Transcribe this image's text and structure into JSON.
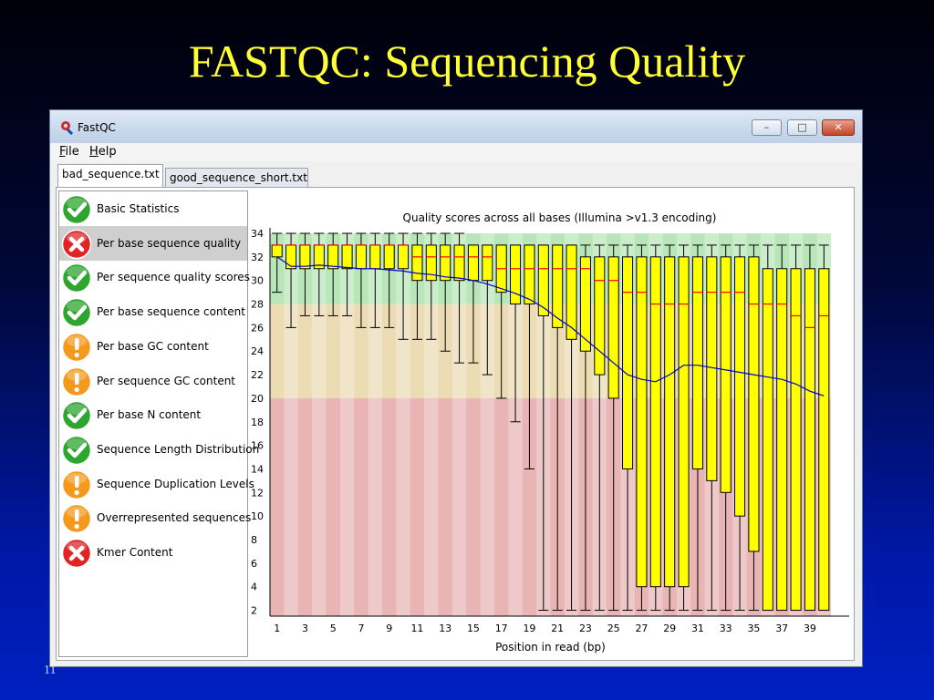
{
  "slide": {
    "title": "FASTQC: Sequencing Quality",
    "number": "11"
  },
  "window": {
    "title": "FastQC",
    "minimize_glyph": "–",
    "maximize_glyph": "□",
    "close_glyph": "✕"
  },
  "menu": {
    "file": {
      "key": "F",
      "rest": "ile"
    },
    "help": {
      "key": "H",
      "rest": "elp"
    }
  },
  "tabs": [
    {
      "label": "bad_sequence.txt",
      "active": true
    },
    {
      "label": "good_sequence_short.txt",
      "active": false
    }
  ],
  "modules": [
    {
      "label": "Basic Statistics",
      "status": "pass",
      "selected": false
    },
    {
      "label": "Per base sequence quality",
      "status": "fail",
      "selected": true
    },
    {
      "label": "Per sequence quality scores",
      "status": "pass",
      "selected": false
    },
    {
      "label": "Per base sequence content",
      "status": "pass",
      "selected": false
    },
    {
      "label": "Per base GC content",
      "status": "warn",
      "selected": false
    },
    {
      "label": "Per sequence GC content",
      "status": "warn",
      "selected": false
    },
    {
      "label": "Per base N content",
      "status": "pass",
      "selected": false
    },
    {
      "label": "Sequence Length Distribution",
      "status": "pass",
      "selected": false
    },
    {
      "label": "Sequence Duplication Levels",
      "status": "warn",
      "selected": false
    },
    {
      "label": "Overrepresented sequences",
      "status": "warn",
      "selected": false
    },
    {
      "label": "Kmer Content",
      "status": "fail",
      "selected": false
    }
  ],
  "status_colors": {
    "pass": "#2ea52e",
    "warn": "#f39a1e",
    "fail": "#e02424"
  },
  "chart_data": {
    "type": "box",
    "title": "Quality scores across all bases (Illumina >v1.3 encoding)",
    "xlabel": "Position in read (bp)",
    "ylabel": "",
    "x_tick_labels": [
      "1",
      "3",
      "5",
      "7",
      "9",
      "11",
      "13",
      "15",
      "17",
      "19",
      "21",
      "23",
      "25",
      "27",
      "29",
      "31",
      "33",
      "35",
      "37",
      "39"
    ],
    "y_tick_labels": [
      "2",
      "4",
      "6",
      "8",
      "10",
      "12",
      "14",
      "16",
      "18",
      "20",
      "22",
      "24",
      "26",
      "28",
      "30",
      "32",
      "34"
    ],
    "ylim": [
      1.5,
      34
    ],
    "bands": [
      {
        "from": 28,
        "to": 34,
        "color": "#b8e6b8"
      },
      {
        "from": 20,
        "to": 28,
        "color": "#ecdcb4"
      },
      {
        "from": 0,
        "to": 20,
        "color": "#e8b4b4"
      }
    ],
    "positions": [
      1,
      2,
      3,
      4,
      5,
      6,
      7,
      8,
      9,
      10,
      11,
      12,
      13,
      14,
      15,
      16,
      17,
      18,
      19,
      20,
      21,
      22,
      23,
      24,
      25,
      26,
      27,
      28,
      29,
      30,
      31,
      32,
      33,
      34,
      35,
      36,
      37,
      38,
      39,
      40
    ],
    "median": [
      33,
      33,
      33,
      33,
      33,
      33,
      33,
      33,
      33,
      33,
      32,
      32,
      32,
      32,
      32,
      32,
      31,
      31,
      31,
      31,
      31,
      31,
      31,
      30,
      30,
      29,
      29,
      28,
      28,
      28,
      29,
      29,
      29,
      29,
      28,
      28,
      28,
      27,
      26,
      27
    ],
    "q1": [
      32,
      31,
      31,
      31,
      31,
      31,
      31,
      31,
      31,
      31,
      30,
      30,
      30,
      30,
      30,
      30,
      29,
      28,
      28,
      27,
      26,
      25,
      24,
      22,
      20,
      14,
      4,
      4,
      4,
      4,
      14,
      13,
      12,
      10,
      7,
      2,
      2,
      2,
      2,
      2
    ],
    "q3": [
      33,
      33,
      33,
      33,
      33,
      33,
      33,
      33,
      33,
      33,
      33,
      33,
      33,
      33,
      33,
      33,
      33,
      33,
      33,
      33,
      33,
      33,
      32,
      32,
      32,
      32,
      32,
      32,
      32,
      32,
      32,
      32,
      32,
      32,
      32,
      31,
      31,
      31,
      31,
      31
    ],
    "whisker_low": [
      29,
      26,
      27,
      27,
      27,
      27,
      26,
      26,
      26,
      25,
      25,
      25,
      24,
      23,
      23,
      22,
      20,
      18,
      14,
      2,
      2,
      2,
      2,
      2,
      2,
      2,
      2,
      2,
      2,
      2,
      2,
      2,
      2,
      2,
      2,
      2,
      2,
      2,
      2,
      2
    ],
    "whisker_high": [
      34,
      34,
      34,
      34,
      34,
      34,
      34,
      34,
      34,
      34,
      34,
      34,
      34,
      34,
      33,
      33,
      33,
      33,
      33,
      33,
      33,
      33,
      33,
      33,
      33,
      33,
      33,
      33,
      33,
      33,
      33,
      33,
      33,
      33,
      33,
      33,
      33,
      33,
      33,
      33
    ],
    "mean": [
      32,
      31.2,
      31.2,
      31.3,
      31.2,
      31.1,
      31.0,
      31.0,
      30.9,
      30.8,
      30.6,
      30.5,
      30.3,
      30.2,
      30.0,
      29.7,
      29.3,
      28.9,
      28.4,
      27.7,
      26.8,
      26.0,
      25.0,
      24.0,
      23.0,
      22.0,
      21.6,
      21.4,
      22.0,
      22.8,
      22.8,
      22.6,
      22.4,
      22.2,
      22.0,
      21.8,
      21.6,
      21.2,
      20.6,
      20.2
    ],
    "colors": {
      "box": "#ffff00",
      "median": "#ff0000",
      "mean": "#0000cc",
      "whisker": "#000000"
    }
  }
}
